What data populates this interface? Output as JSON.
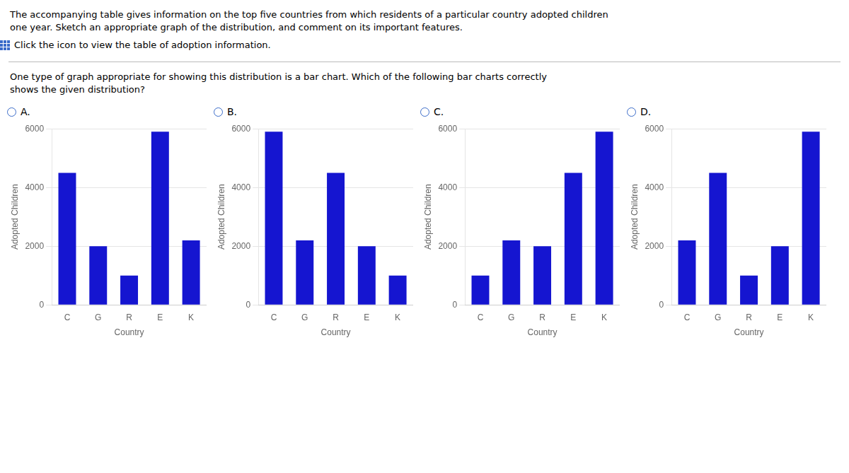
{
  "title": [
    "The accompanying table gives information on the top five countries from which residents of a particular country adopted children",
    "one year. Sketch an appropriate graph of the distribution, and comment on its important features."
  ],
  "annotations": [
    "Click the icon to view the table of adoption information.",
    "One type of graph appropriate for showing this distribution is a bar chart. Which of the following bar charts correctly",
    "shows the given distribution?"
  ],
  "chart_data": [
    {
      "type": "bar",
      "title": "A.",
      "categories": [
        "C",
        "G",
        "R",
        "E",
        "K"
      ],
      "values": [
        4500,
        2000,
        1000,
        5900,
        2200
      ],
      "color": "#1515d0",
      "xlabel": "Country",
      "ylabel": "Adopted Children",
      "ylim": [
        0,
        6000
      ],
      "yticks": [
        0,
        2000,
        4000,
        6000
      ],
      "grid": true
    },
    {
      "type": "bar",
      "title": "B.",
      "categories": [
        "C",
        "G",
        "R",
        "E",
        "K"
      ],
      "values": [
        5900,
        2200,
        4500,
        2000,
        1000
      ],
      "color": "#1515d0",
      "xlabel": "Country",
      "ylabel": "Adopted Children",
      "ylim": [
        0,
        6000
      ],
      "yticks": [
        0,
        2000,
        4000,
        6000
      ],
      "grid": true
    },
    {
      "type": "bar",
      "title": "C.",
      "categories": [
        "C",
        "G",
        "R",
        "E",
        "K"
      ],
      "values": [
        1000,
        2200,
        2000,
        4500,
        5900
      ],
      "color": "#1515d0",
      "xlabel": "Country",
      "ylabel": "Adopted Children",
      "ylim": [
        0,
        6000
      ],
      "yticks": [
        0,
        2000,
        4000,
        6000
      ],
      "grid": true
    },
    {
      "type": "bar",
      "title": "D.",
      "categories": [
        "C",
        "G",
        "R",
        "E",
        "K"
      ],
      "values": [
        2200,
        4500,
        1000,
        2000,
        5900
      ],
      "color": "#1515d0",
      "xlabel": "Country",
      "ylabel": "Adopted Children",
      "ylim": [
        0,
        6000
      ],
      "yticks": [
        0,
        2000,
        4000,
        6000
      ],
      "grid": true
    }
  ]
}
